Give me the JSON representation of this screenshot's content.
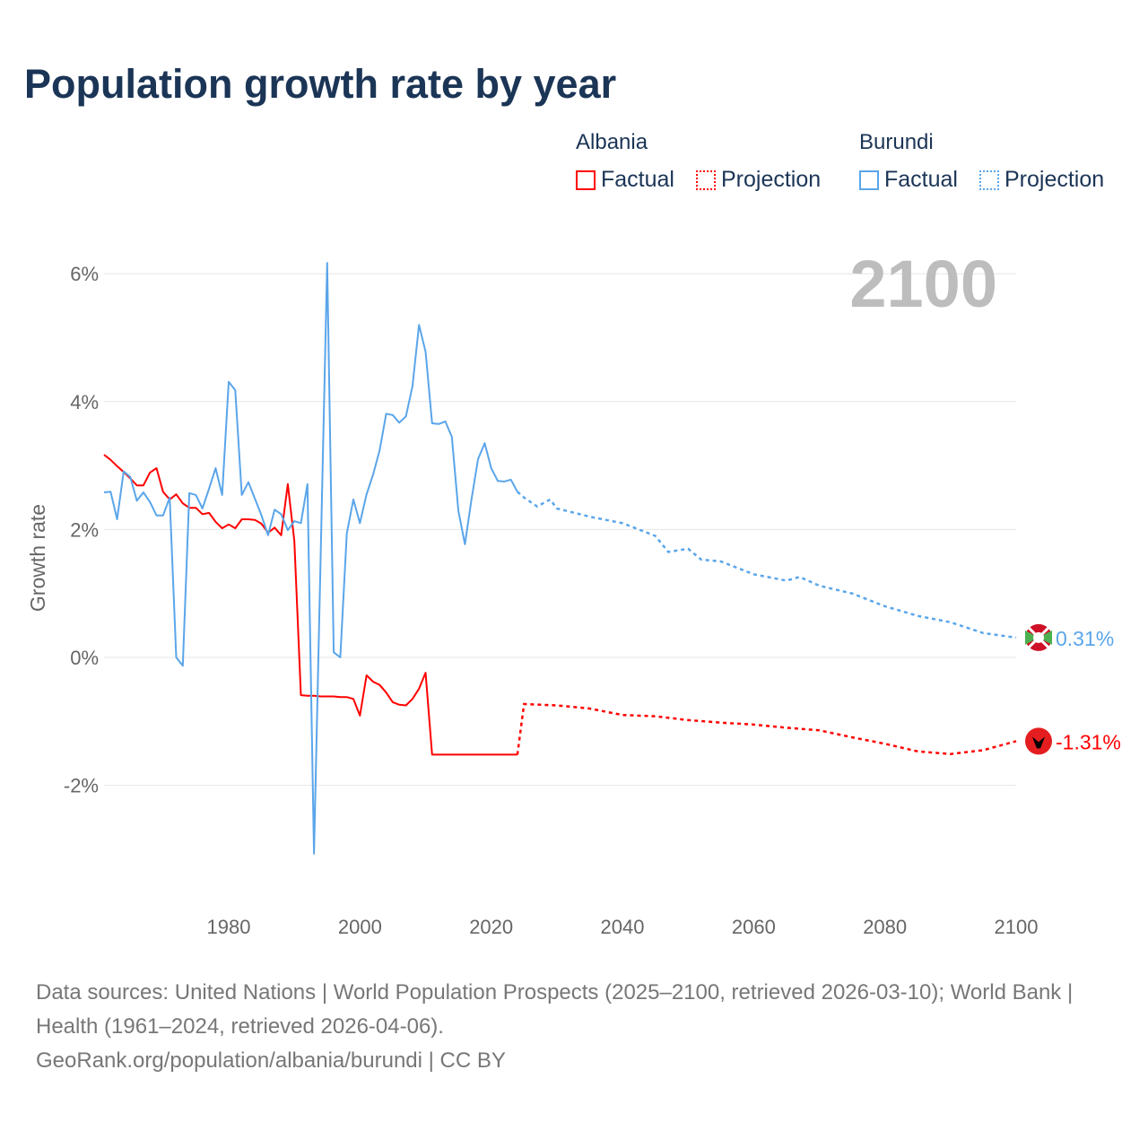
{
  "title": "Population growth rate by year",
  "legend": {
    "groups": [
      {
        "name": "Albania",
        "factual": "Factual",
        "projection": "Projection",
        "color": "#ff0000"
      },
      {
        "name": "Burundi",
        "factual": "Factual",
        "projection": "Projection",
        "color": "#5aa5ea"
      }
    ]
  },
  "footer": {
    "sources": "Data sources: United Nations | World Population Prospects (2025–2100, retrieved 2026-03-10); World Bank | Health (1961–2024, retrieved 2026-04-06).",
    "credit": "GeoRank.org/population/albania/burundi | CC BY"
  },
  "chart_data": {
    "type": "line",
    "title": "Population growth rate by year",
    "xlabel": "",
    "ylabel": "Growth rate",
    "year_label": "2100",
    "xlim": [
      1961,
      2100
    ],
    "ylim": [
      -3.6,
      6.2
    ],
    "xticks": [
      1980,
      2000,
      2020,
      2040,
      2060,
      2080,
      2100
    ],
    "xtick_labels": [
      "1980",
      "2000",
      "2020",
      "2040",
      "2060",
      "2080",
      "2100"
    ],
    "yticks": [
      -2,
      0,
      2,
      4,
      6
    ],
    "ytick_labels": [
      "-2%",
      "0%",
      "2%",
      "4%",
      "6%"
    ],
    "grid": true,
    "series": [
      {
        "name": "Albania",
        "color": "#ff0000",
        "end_label": "-1.31%",
        "factual": {
          "x": [
            1961,
            1962,
            1963,
            1964,
            1965,
            1966,
            1967,
            1968,
            1969,
            1970,
            1971,
            1972,
            1973,
            1974,
            1975,
            1976,
            1977,
            1978,
            1979,
            1980,
            1981,
            1982,
            1983,
            1984,
            1985,
            1986,
            1987,
            1988,
            1989,
            1990,
            1991,
            1992,
            1993,
            1994,
            1995,
            1996,
            1997,
            1998,
            1999,
            2000,
            2001,
            2002,
            2003,
            2004,
            2005,
            2006,
            2007,
            2008,
            2009,
            2010,
            2011,
            2012,
            2013,
            2014,
            2015,
            2016,
            2017,
            2018,
            2019,
            2020,
            2021,
            2022,
            2023,
            2024
          ],
          "y": [
            3.17,
            3.09,
            2.99,
            2.9,
            2.8,
            2.69,
            2.69,
            2.89,
            2.96,
            2.59,
            2.47,
            2.55,
            2.41,
            2.34,
            2.34,
            2.24,
            2.26,
            2.12,
            2.02,
            2.08,
            2.02,
            2.16,
            2.16,
            2.15,
            2.09,
            1.95,
            2.03,
            1.91,
            2.71,
            1.82,
            -0.59,
            -0.6,
            -0.6,
            -0.61,
            -0.61,
            -0.61,
            -0.62,
            -0.62,
            -0.65,
            -0.91,
            -0.28,
            -0.38,
            -0.43,
            -0.55,
            -0.7,
            -0.74,
            -0.75,
            -0.65,
            -0.49,
            -0.24,
            -1.52,
            -1.52,
            -1.52,
            -1.52,
            -1.52,
            -1.52,
            -1.52,
            -1.52,
            -1.52,
            -1.52,
            -1.52,
            -1.52,
            -1.52,
            -1.52
          ]
        },
        "projection": {
          "x": [
            2024,
            2025,
            2030,
            2035,
            2040,
            2045,
            2050,
            2055,
            2060,
            2065,
            2070,
            2075,
            2080,
            2085,
            2090,
            2095,
            2100
          ],
          "y": [
            -1.52,
            -0.73,
            -0.75,
            -0.8,
            -0.9,
            -0.92,
            -0.98,
            -1.02,
            -1.05,
            -1.1,
            -1.14,
            -1.25,
            -1.35,
            -1.47,
            -1.51,
            -1.45,
            -1.31
          ]
        }
      },
      {
        "name": "Burundi",
        "color": "#5aa5ea",
        "end_label": "0.31%",
        "factual": {
          "x": [
            1961,
            1962,
            1963,
            1964,
            1965,
            1966,
            1967,
            1968,
            1969,
            1970,
            1971,
            1972,
            1973,
            1974,
            1975,
            1976,
            1977,
            1978,
            1979,
            1980,
            1981,
            1982,
            1983,
            1984,
            1985,
            1986,
            1987,
            1988,
            1989,
            1990,
            1991,
            1992,
            1993,
            1994,
            1995,
            1996,
            1997,
            1998,
            1999,
            2000,
            2001,
            2002,
            2003,
            2004,
            2005,
            2006,
            2007,
            2008,
            2009,
            2010,
            2011,
            2012,
            2013,
            2014,
            2015,
            2016,
            2017,
            2018,
            2019,
            2020,
            2021,
            2022,
            2023,
            2024
          ],
          "y": [
            2.58,
            2.59,
            2.16,
            2.91,
            2.82,
            2.45,
            2.58,
            2.43,
            2.22,
            2.22,
            2.5,
            0.0,
            -0.13,
            2.57,
            2.54,
            2.33,
            2.64,
            2.96,
            2.54,
            4.31,
            4.18,
            2.54,
            2.74,
            2.48,
            2.22,
            1.91,
            2.31,
            2.24,
            1.99,
            2.13,
            2.1,
            2.71,
            -3.07,
            1.5,
            6.17,
            0.08,
            0.0,
            1.94,
            2.47,
            2.1,
            2.55,
            2.86,
            3.24,
            3.81,
            3.79,
            3.67,
            3.77,
            4.24,
            5.2,
            4.78,
            3.66,
            3.65,
            3.69,
            3.45,
            2.29,
            1.77,
            2.47,
            3.1,
            3.35,
            2.96,
            2.76,
            2.75,
            2.78,
            2.59
          ]
        },
        "projection": {
          "x": [
            2024,
            2025,
            2027,
            2029,
            2030,
            2035,
            2040,
            2045,
            2047,
            2050,
            2052,
            2055,
            2060,
            2065,
            2067,
            2070,
            2075,
            2080,
            2085,
            2090,
            2095,
            2100
          ],
          "y": [
            2.59,
            2.5,
            2.36,
            2.47,
            2.33,
            2.2,
            2.1,
            1.9,
            1.65,
            1.7,
            1.53,
            1.5,
            1.3,
            1.2,
            1.26,
            1.12,
            1.0,
            0.8,
            0.65,
            0.55,
            0.38,
            0.31
          ]
        }
      }
    ]
  }
}
